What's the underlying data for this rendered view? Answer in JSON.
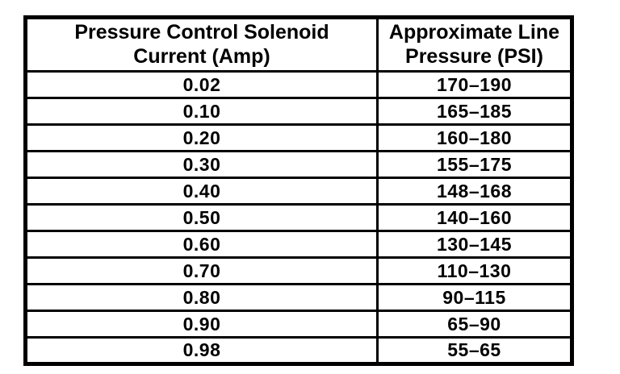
{
  "table": {
    "headers": [
      {
        "text": "Pressure Control Solenoid\nCurrent (Amp)"
      },
      {
        "text": "Approximate Line\nPressure (PSI)"
      }
    ],
    "rows": [
      {
        "current": "0.02",
        "pressure": "170–190"
      },
      {
        "current": "0.10",
        "pressure": "165–185"
      },
      {
        "current": "0.20",
        "pressure": "160–180"
      },
      {
        "current": "0.30",
        "pressure": "155–175"
      },
      {
        "current": "0.40",
        "pressure": "148–168"
      },
      {
        "current": "0.50",
        "pressure": "140–160"
      },
      {
        "current": "0.60",
        "pressure": "130–145"
      },
      {
        "current": "0.70",
        "pressure": "110–130"
      },
      {
        "current": "0.80",
        "pressure": "90–115"
      },
      {
        "current": "0.90",
        "pressure": "65–90"
      },
      {
        "current": "0.98",
        "pressure": "55–65"
      }
    ],
    "colors": {
      "border": "#000000",
      "background": "#ffffff",
      "text": "#000000"
    }
  }
}
